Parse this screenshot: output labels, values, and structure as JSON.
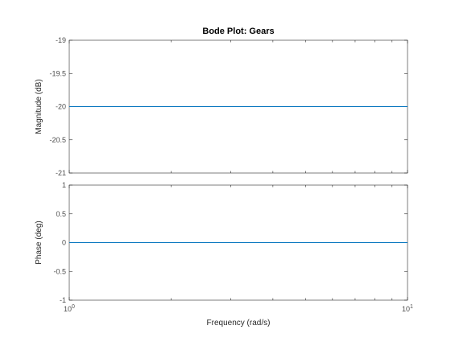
{
  "chart_data": [
    {
      "type": "line",
      "title": "Bode Plot: Gears",
      "xlabel": "",
      "ylabel": "Magnitude (dB)",
      "xscale": "log",
      "xlim": [
        1,
        10
      ],
      "ylim": [
        -21,
        -19
      ],
      "yticks": [
        -21,
        -20.5,
        -20,
        -19.5,
        -19
      ],
      "ytick_labels": [
        "-21",
        "-20.5",
        "-20",
        "-19.5",
        "-19"
      ],
      "series": [
        {
          "x": [
            1,
            10
          ],
          "y": [
            -20,
            -20
          ],
          "color": "#0072bd"
        }
      ]
    },
    {
      "type": "line",
      "title": "",
      "xlabel": "Frequency  (rad/s)",
      "ylabel": "Phase (deg)",
      "xscale": "log",
      "xlim": [
        1,
        10
      ],
      "ylim": [
        -1,
        1
      ],
      "yticks": [
        -1,
        -0.5,
        0,
        0.5,
        1
      ],
      "ytick_labels": [
        "-1",
        "-0.5",
        "0",
        "0.5",
        "1"
      ],
      "xtick_labels": [
        {
          "base": "10",
          "exp": "0"
        },
        {
          "base": "10",
          "exp": "1"
        }
      ],
      "series": [
        {
          "x": [
            1,
            10
          ],
          "y": [
            0,
            0
          ],
          "color": "#0072bd"
        }
      ]
    }
  ]
}
